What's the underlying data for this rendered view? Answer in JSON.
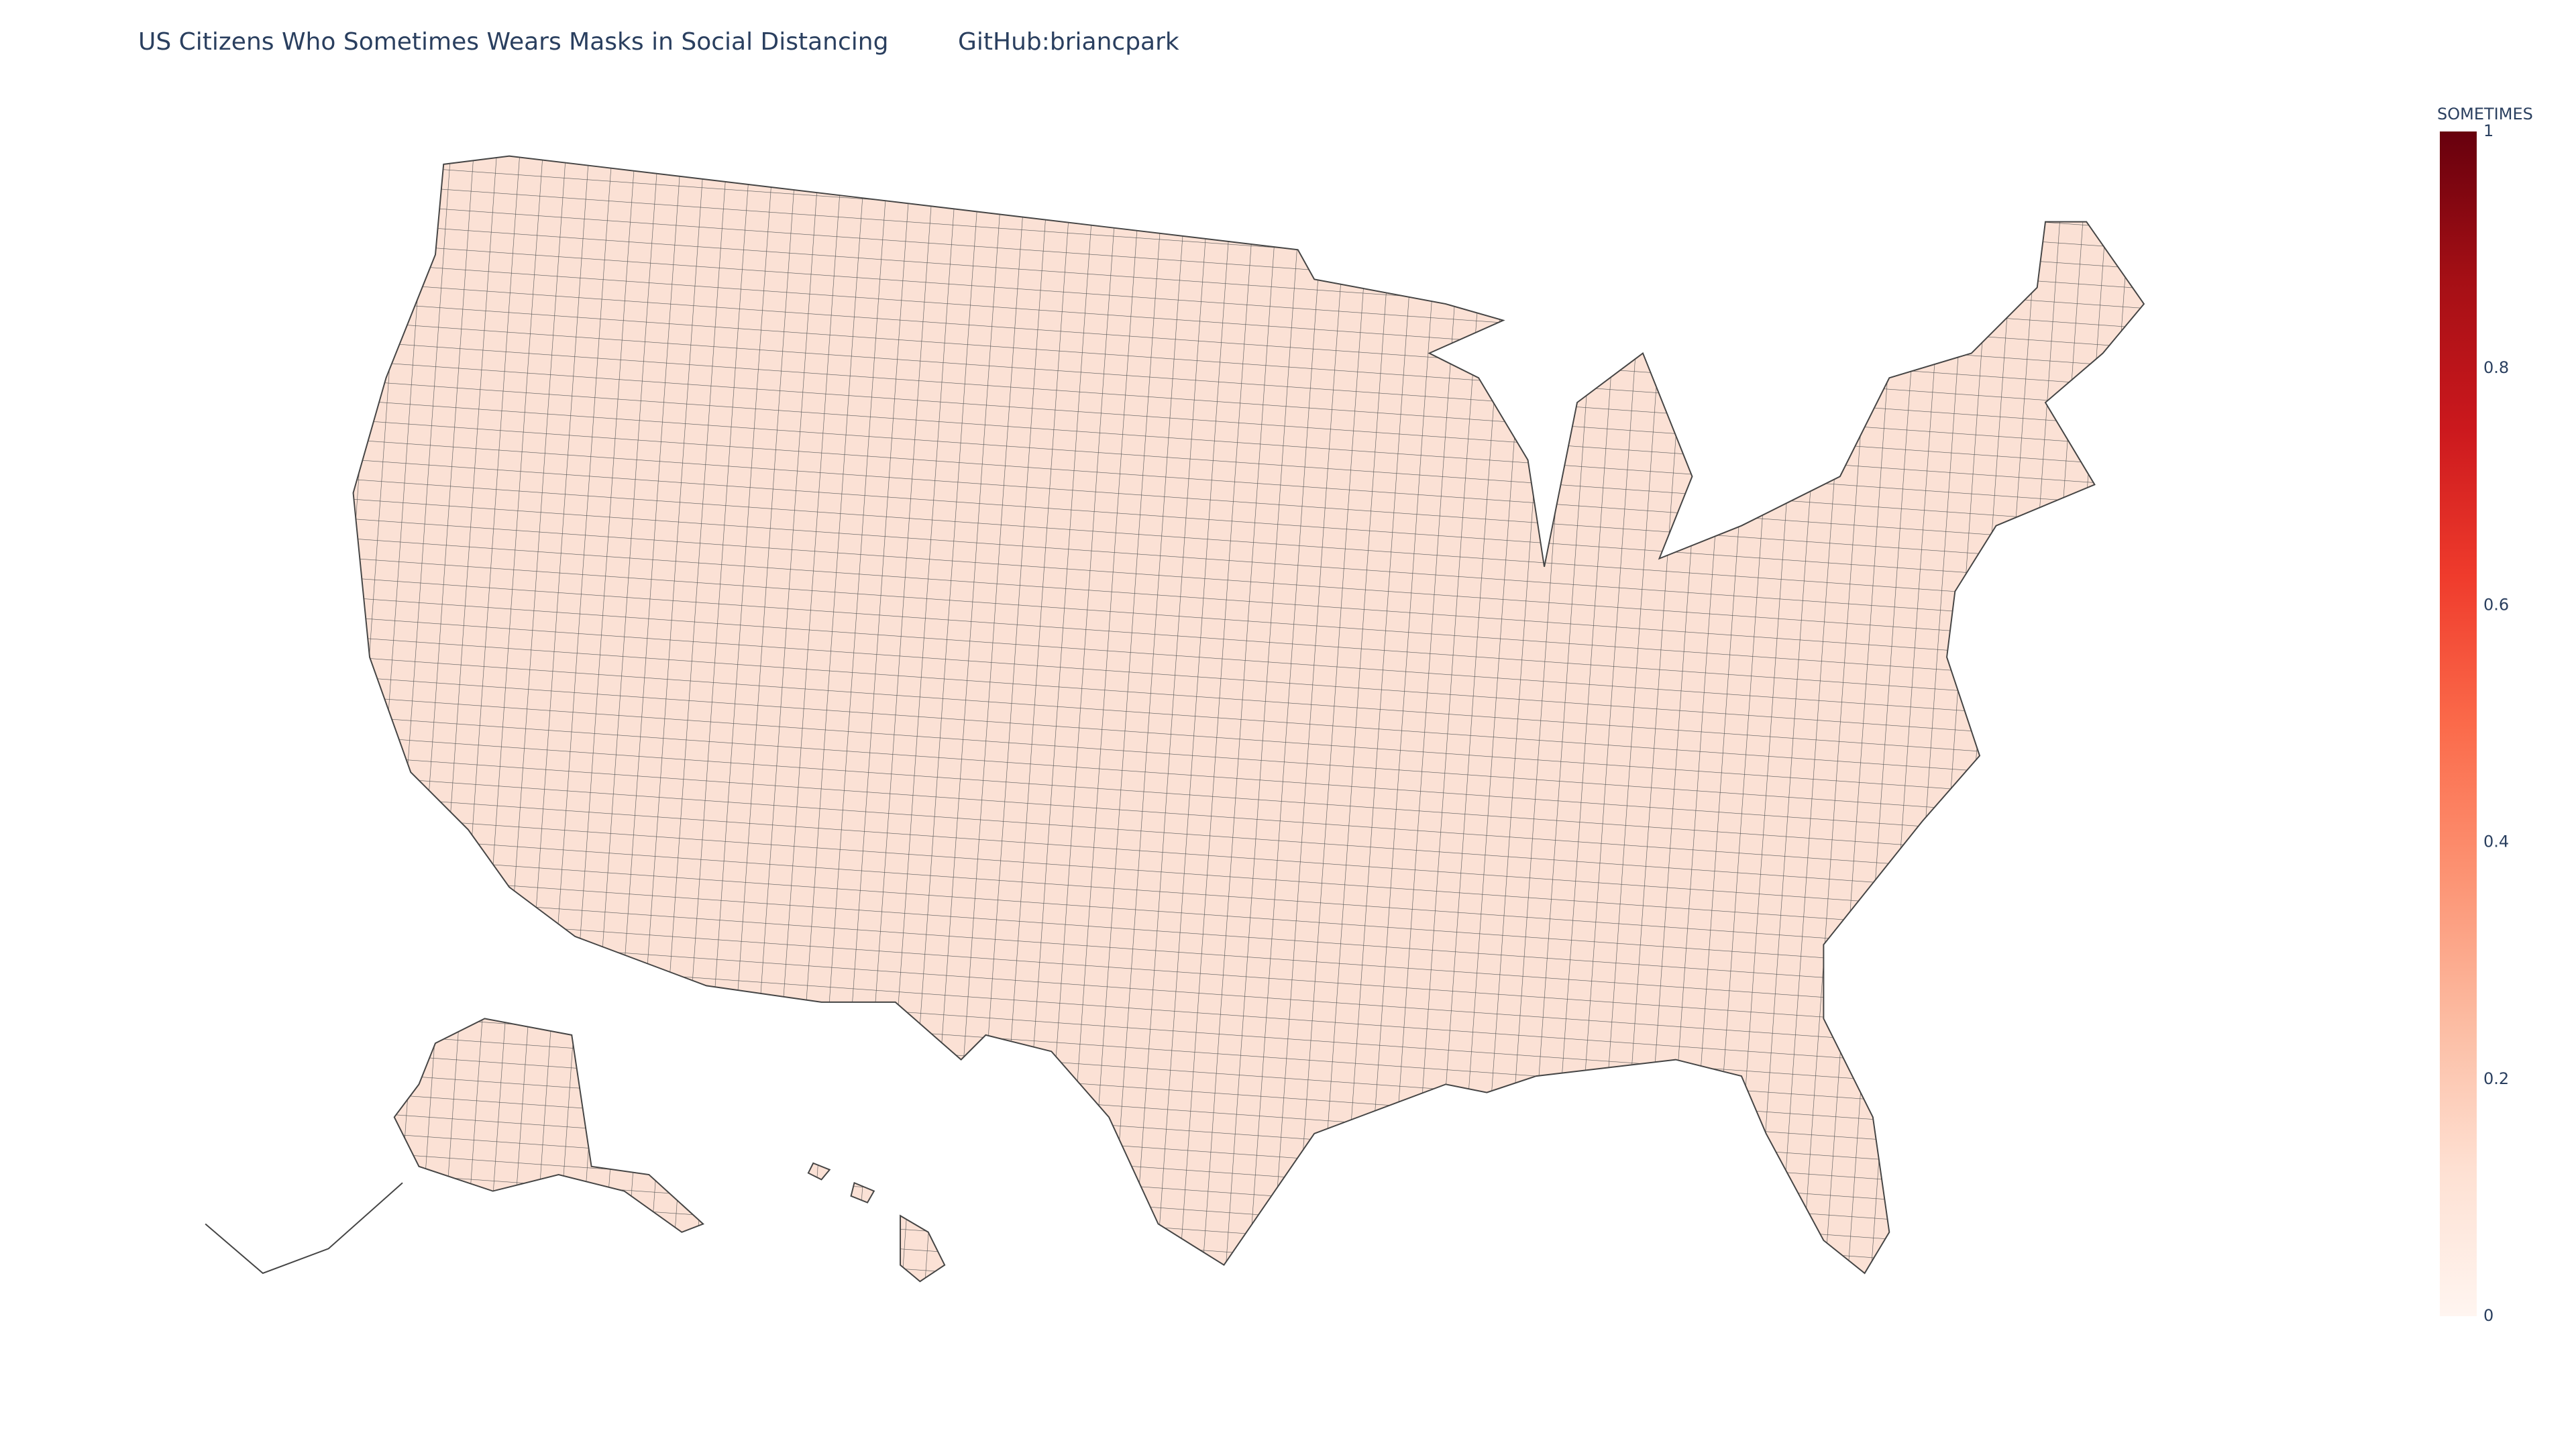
{
  "chart_data": {
    "type": "choropleth",
    "title": "US Citizens Who Sometimes Wears Masks in Social Distancing",
    "subtitle": "GitHub:briancpark",
    "colorbar": {
      "title": "SOMETIMES",
      "range": [
        0,
        1
      ],
      "ticks": [
        0,
        0.2,
        0.4,
        0.6,
        0.8,
        1
      ],
      "colors": [
        "#fff5f0",
        "#fee0d2",
        "#fcbba1",
        "#fc9272",
        "#fb6a4a",
        "#ef3b2c",
        "#cb181d",
        "#a50f15",
        "#67000d"
      ]
    }
  }
}
